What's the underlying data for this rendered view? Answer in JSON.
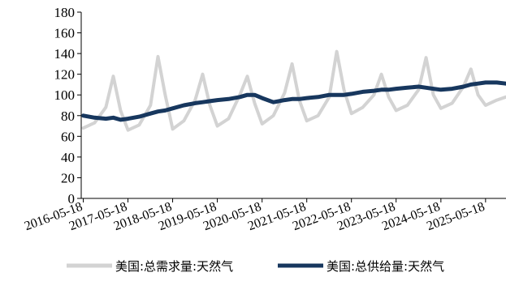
{
  "chart_data": {
    "type": "line",
    "title": "",
    "xlabel": "",
    "ylabel": "",
    "ylim": [
      0,
      180
    ],
    "y_ticks": [
      "0",
      "20",
      "40",
      "60",
      "80",
      "100",
      "120",
      "140",
      "160",
      "180"
    ],
    "x_tick_labels": [
      "2016-05-18",
      "2017-05-18",
      "2018-05-18",
      "2019-05-18",
      "2020-05-18",
      "2021-05-18",
      "2022-05-18",
      "2023-05-18",
      "2024-05-18",
      "2025-05-18"
    ],
    "grid": false,
    "legend_position": "bottom",
    "x": [
      "2016-05-18",
      "2016-08-18",
      "2016-11-18",
      "2017-01-18",
      "2017-03-18",
      "2017-05-18",
      "2017-08-18",
      "2017-11-18",
      "2018-01-18",
      "2018-03-18",
      "2018-05-18",
      "2018-08-18",
      "2018-11-18",
      "2019-01-18",
      "2019-03-18",
      "2019-05-18",
      "2019-08-18",
      "2019-11-18",
      "2020-01-18",
      "2020-03-18",
      "2020-05-18",
      "2020-08-18",
      "2020-11-18",
      "2021-01-18",
      "2021-03-18",
      "2021-05-18",
      "2021-08-18",
      "2021-11-18",
      "2022-01-18",
      "2022-03-18",
      "2022-05-18",
      "2022-08-18",
      "2022-11-18",
      "2023-01-18",
      "2023-03-18",
      "2023-05-18",
      "2023-08-18",
      "2023-11-18",
      "2024-01-18",
      "2024-03-18",
      "2024-05-18",
      "2024-08-18",
      "2024-11-18",
      "2025-01-18",
      "2025-03-18",
      "2025-05-18",
      "2025-08-18",
      "2025-10-31"
    ],
    "series": [
      {
        "name": "美国:总需求量:天然气",
        "color": "#d3d3d3",
        "values": [
          68,
          73,
          88,
          118,
          85,
          66,
          71,
          90,
          137,
          100,
          67,
          75,
          95,
          120,
          90,
          70,
          77,
          100,
          118,
          92,
          72,
          80,
          102,
          130,
          95,
          75,
          80,
          98,
          142,
          105,
          82,
          88,
          100,
          120,
          98,
          85,
          90,
          105,
          136,
          100,
          87,
          92,
          108,
          125,
          100,
          90,
          95,
          98
        ]
      },
      {
        "name": "美国:总供给量:天然气",
        "color": "#17375e",
        "values": [
          80,
          78,
          77,
          78,
          76,
          77,
          79,
          82,
          84,
          85,
          87,
          90,
          92,
          93,
          94,
          95,
          96,
          98,
          100,
          100,
          97,
          93,
          95,
          96,
          96,
          97,
          98,
          100,
          100,
          100,
          101,
          103,
          104,
          105,
          105,
          106,
          107,
          108,
          107,
          106,
          105,
          106,
          108,
          110,
          111,
          112,
          112,
          111
        ]
      }
    ]
  }
}
